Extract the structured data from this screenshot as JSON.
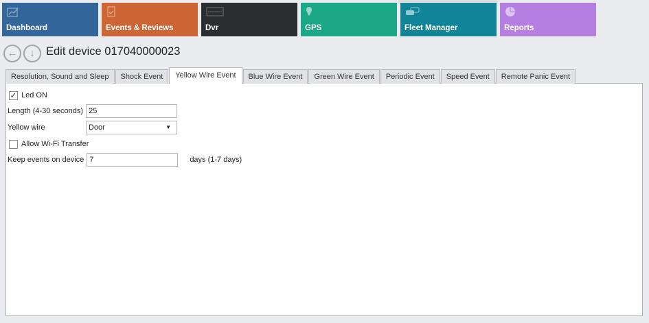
{
  "nav_tiles": [
    {
      "label": "Dashboard",
      "icon": "chart-trend-icon",
      "color": "#33679b"
    },
    {
      "label": "Events & Reviews",
      "icon": "clipboard-check-icon",
      "color": "#cd6535"
    },
    {
      "label": "Dvr",
      "icon": "merge-logo-icon",
      "color": "#2b2d31"
    },
    {
      "label": "GPS",
      "icon": "map-pin-icon",
      "color": "#1aa887"
    },
    {
      "label": "Fleet Manager",
      "icon": "cars-icon",
      "color": "#0f8597"
    },
    {
      "label": "Reports",
      "icon": "pie-chart-icon",
      "color": "#b57fe1"
    }
  ],
  "header": {
    "title": "Edit device 017040000023",
    "back_icon": "arrow-left-circle-icon",
    "down_icon": "arrow-down-circle-icon"
  },
  "tabs": [
    "Resolution, Sound and Sleep",
    "Shock Event",
    "Yellow Wire Event",
    "Blue Wire Event",
    "Green Wire Event",
    "Periodic Event",
    "Speed Event",
    "Remote Panic Event"
  ],
  "active_tab": "Yellow Wire Event",
  "form": {
    "led_on": {
      "label": "Led ON",
      "checked": true
    },
    "length": {
      "label": "Length (4-30 seconds)",
      "value": "25"
    },
    "yellow_wire": {
      "label": "Yellow wire",
      "value": "Door"
    },
    "wifi": {
      "label": "Allow Wi-Fi Transfer",
      "checked": false
    },
    "keep": {
      "label": "Keep events on device",
      "value": "7",
      "suffix": "days (1-7 days)"
    }
  }
}
